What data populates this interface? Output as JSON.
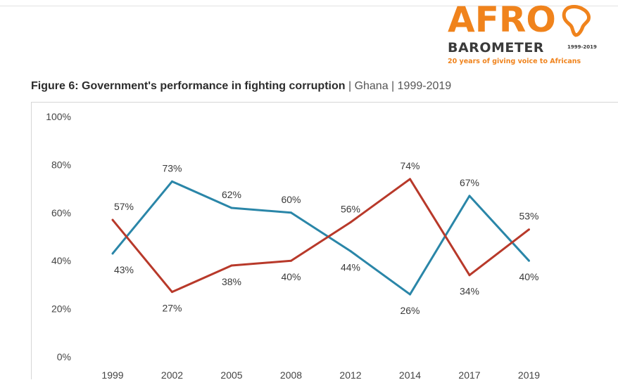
{
  "logo": {
    "name": "AFRO",
    "sub": "BAROMETER",
    "years": "1999-2019",
    "tagline": "20 years of giving voice to Africans",
    "colors": {
      "orange": "#f0831c",
      "dark": "#3a3a3a"
    }
  },
  "figure": {
    "title_main": "Figure 6: Government's performance in fighting corruption",
    "title_sub": " | Ghana | 1999-2019"
  },
  "chart_data": {
    "type": "line",
    "categories": [
      "1999",
      "2002",
      "2005",
      "2008",
      "2012",
      "2014",
      "2017",
      "2019"
    ],
    "ylim": [
      0,
      100
    ],
    "yticks": [
      "0%",
      "20%",
      "40%",
      "60%",
      "80%",
      "100%"
    ],
    "grid": false,
    "legend": "none",
    "series": [
      {
        "color": "#2a86a8",
        "values": [
          43,
          73,
          62,
          60,
          44,
          26,
          67,
          40
        ],
        "labels": [
          "43%",
          "73%",
          "62%",
          "60%",
          "44%",
          "26%",
          "67%",
          "40%"
        ]
      },
      {
        "color": "#b8392a",
        "values": [
          57,
          27,
          38,
          40,
          56,
          74,
          34,
          53
        ],
        "labels": [
          "57%",
          "27%",
          "38%",
          "40%",
          "56%",
          "74%",
          "34%",
          "53%"
        ]
      }
    ]
  }
}
